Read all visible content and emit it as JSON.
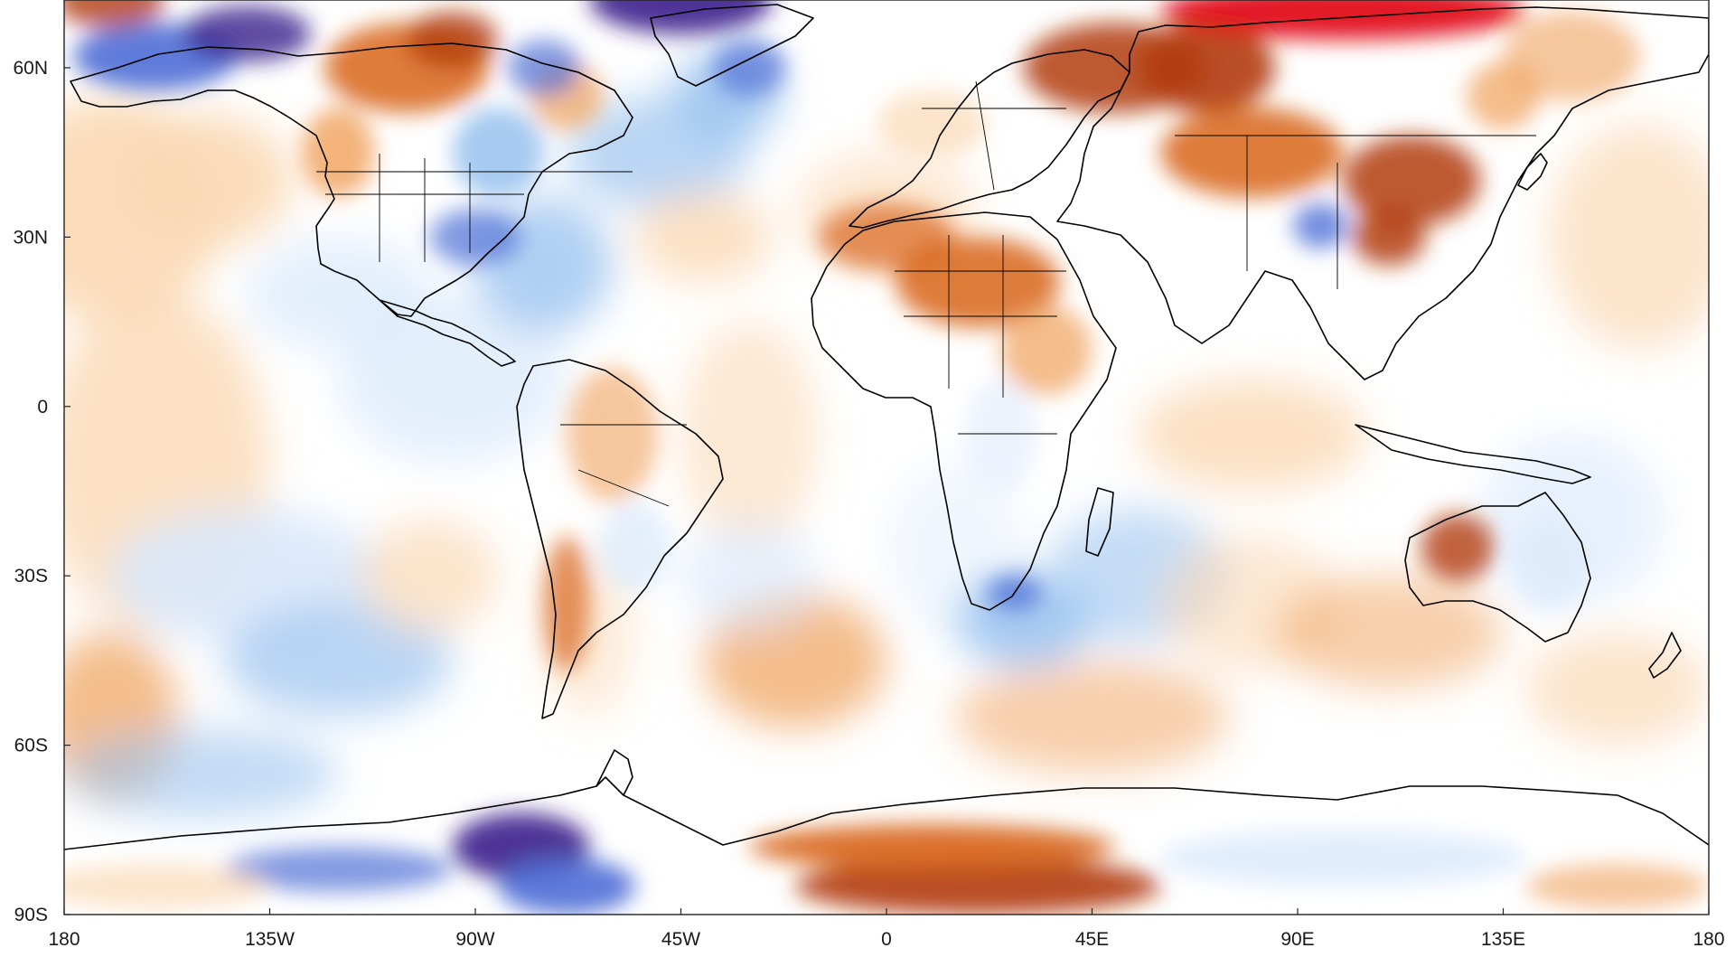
{
  "map": {
    "projection": "equirectangular",
    "lon_range": [
      -180,
      180
    ],
    "lat_range": [
      -90,
      72
    ],
    "colormap": "blue-white-orange diverging (cold anomaly blue, warm anomaly orange/red)",
    "colors": {
      "deep_cold": "#3a1f8c",
      "cold": "#4f6fd6",
      "cool": "#9cc4f0",
      "light_cool": "#d9e8fb",
      "neutral": "#ffffff",
      "light_warm": "#fbd9b5",
      "warm": "#f0a05a",
      "hot": "#d8641a",
      "very_hot": "#b23c0c",
      "extreme_hot": "#e0060a"
    },
    "latitude_labels": [
      "60N",
      "30N",
      "0",
      "30S",
      "60S",
      "90S"
    ],
    "longitude_labels": [
      "180",
      "135W",
      "90W",
      "45W",
      "0",
      "45E",
      "90E",
      "135E",
      "180"
    ]
  }
}
